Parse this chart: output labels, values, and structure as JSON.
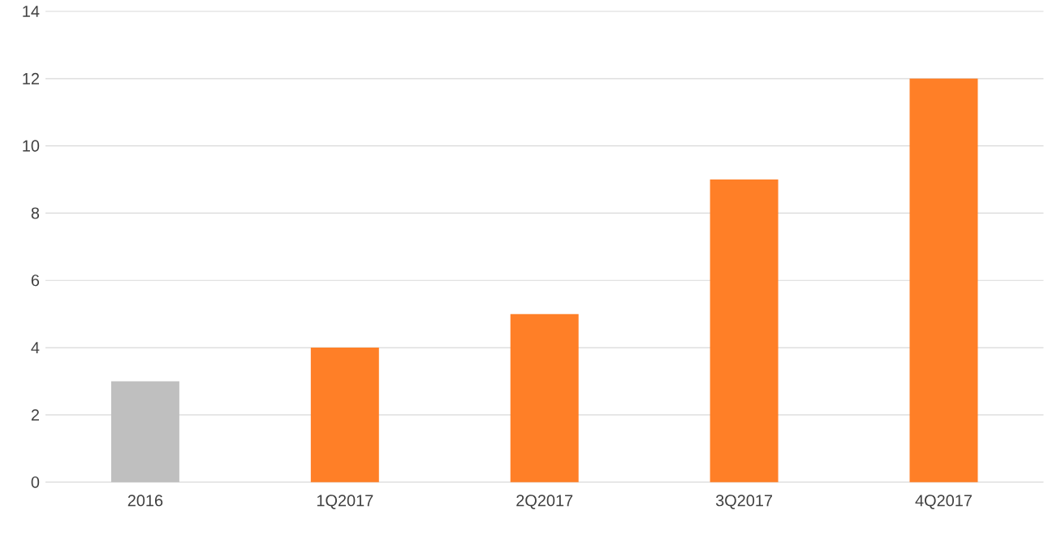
{
  "chart_data": {
    "type": "bar",
    "categories": [
      "2016",
      "1Q2017",
      "2Q2017",
      "3Q2017",
      "4Q2017"
    ],
    "values": [
      3,
      4,
      5,
      9,
      12
    ],
    "colors": [
      "#bfbfbf",
      "#ff7f27",
      "#ff7f27",
      "#ff7f27",
      "#ff7f27"
    ],
    "ylim": [
      0,
      14
    ],
    "yticks": [
      0,
      2,
      4,
      6,
      8,
      10,
      12,
      14
    ],
    "grid": "y"
  }
}
